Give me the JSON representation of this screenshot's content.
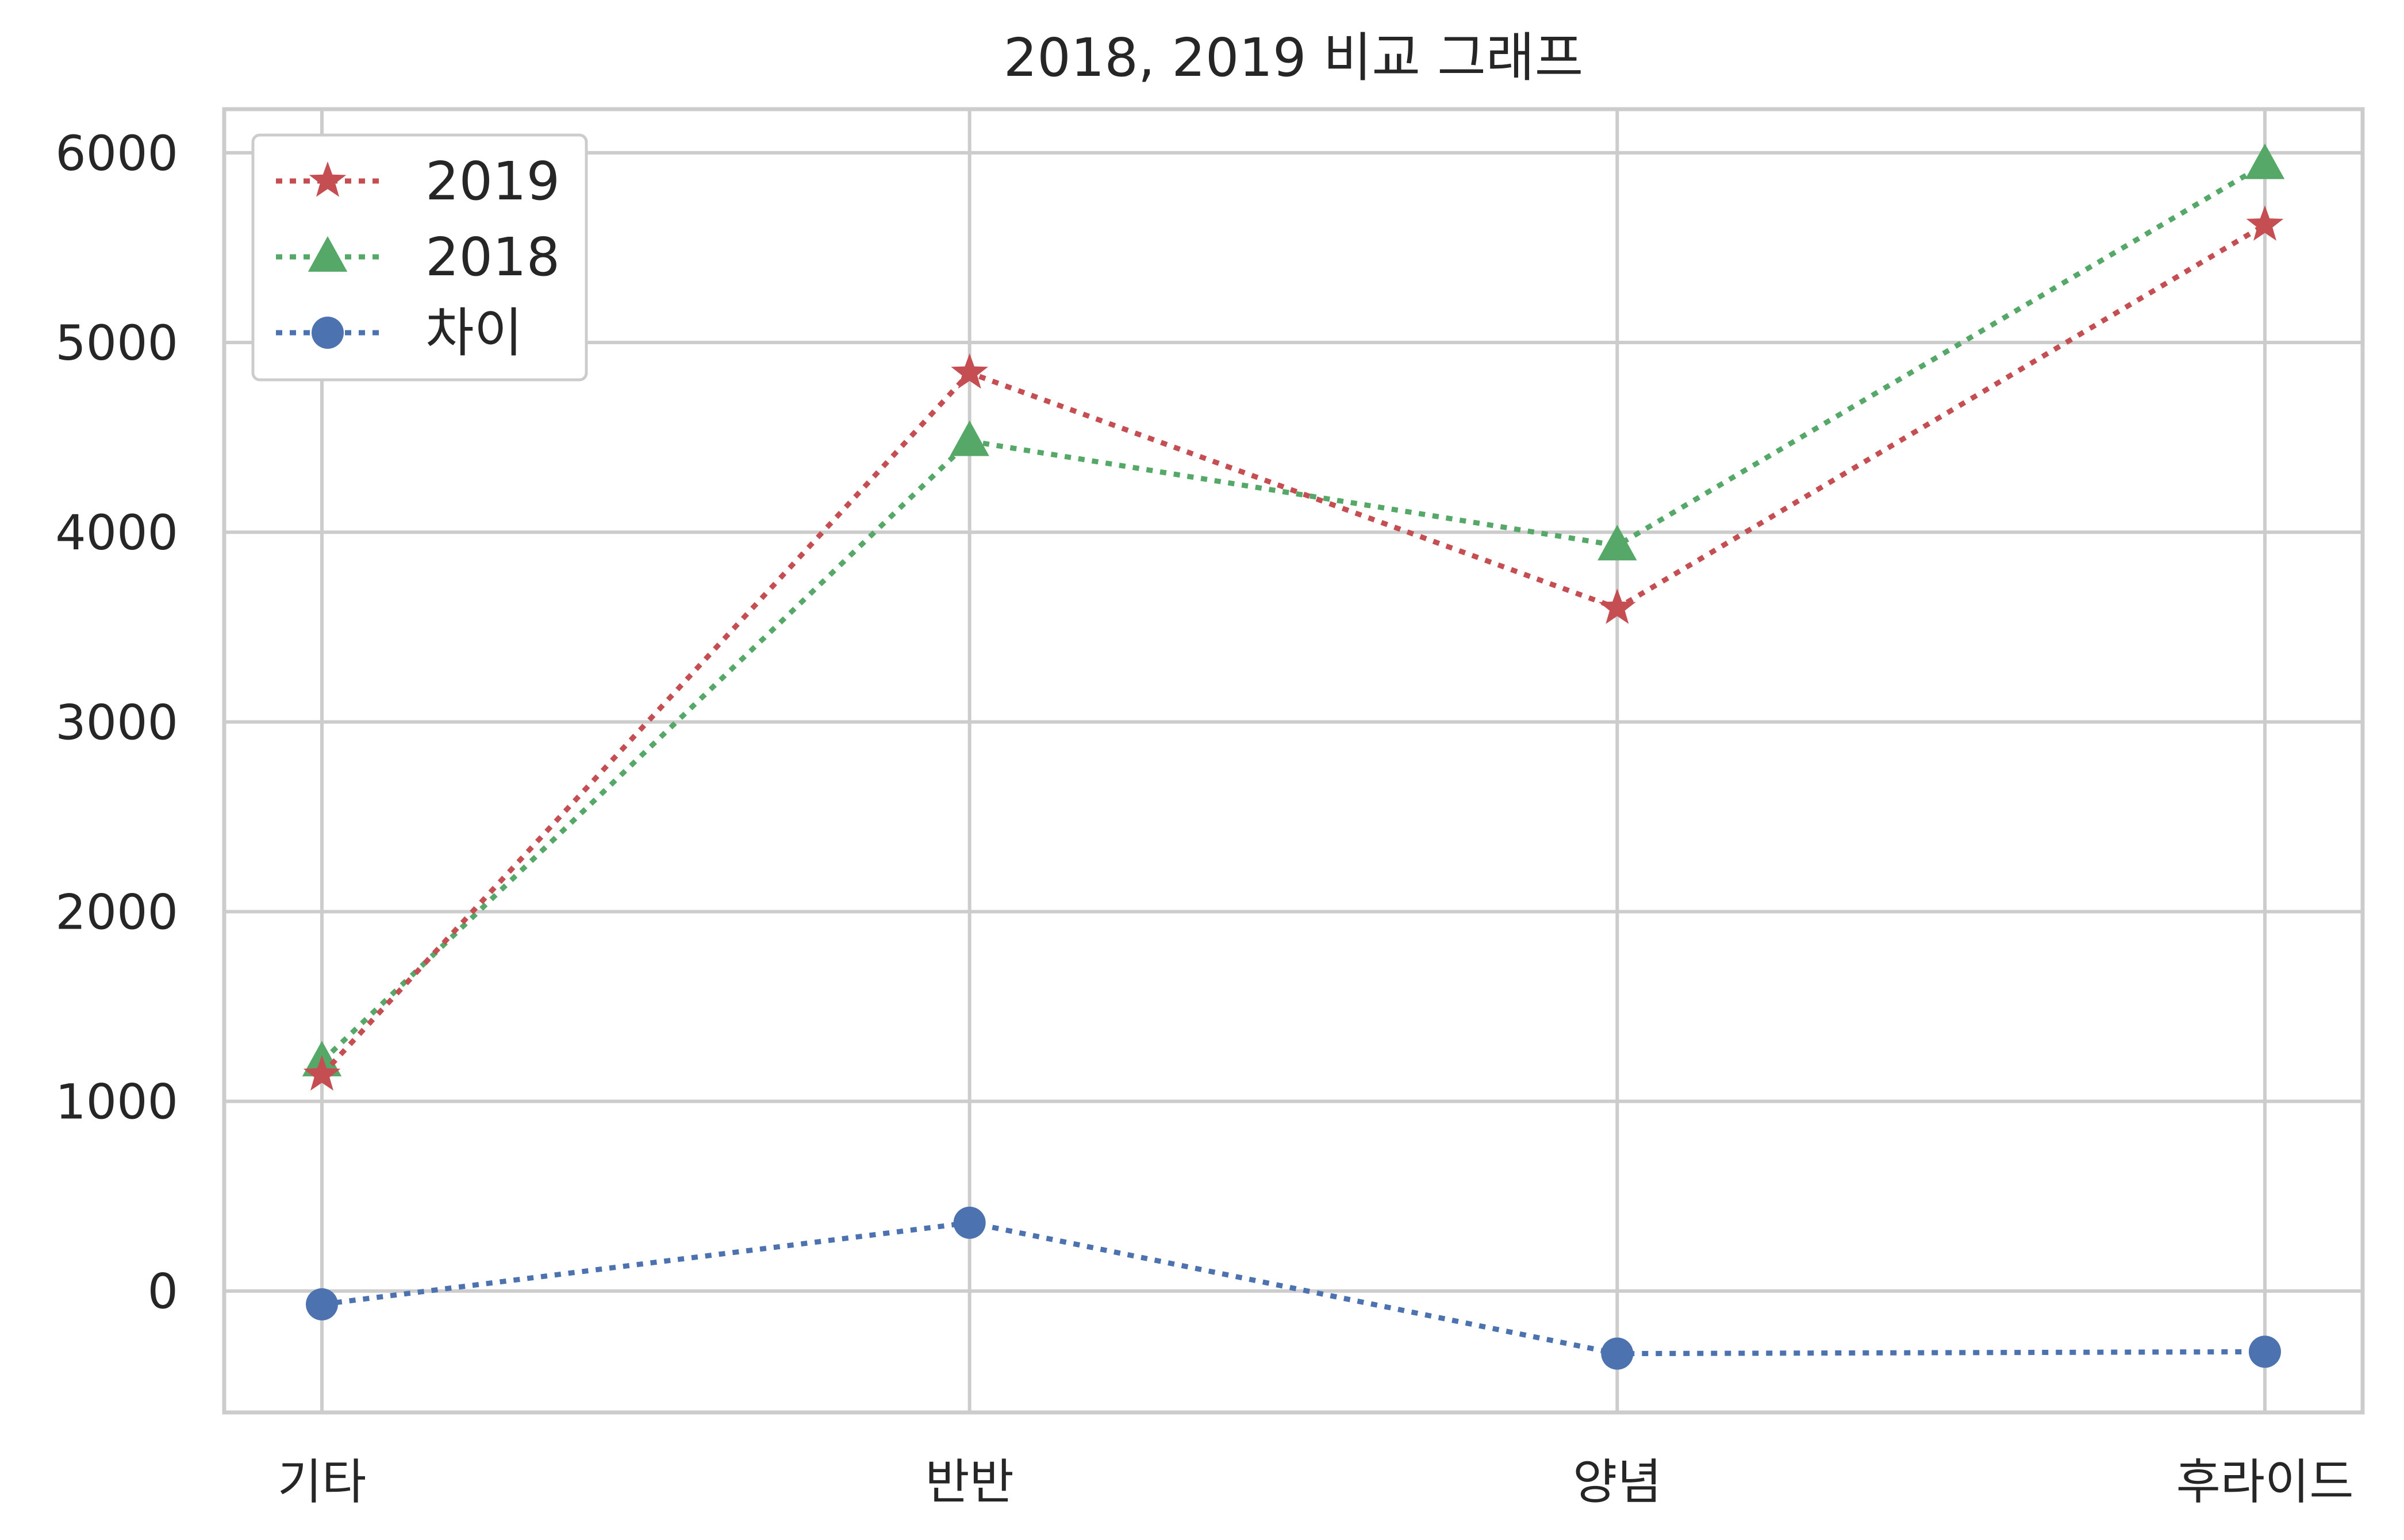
{
  "chart_data": {
    "type": "line",
    "title": "2018, 2019 비교 그래프",
    "xlabel": "",
    "ylabel": "",
    "categories": [
      "기타",
      "반반",
      "양념",
      "후라이드"
    ],
    "ylim": [
      -640,
      6230
    ],
    "yticks": [
      0,
      1000,
      2000,
      3000,
      4000,
      5000,
      6000
    ],
    "grid": true,
    "legend_position": "top-left",
    "series": [
      {
        "name": "2019",
        "values": [
          1140,
          4840,
          3600,
          5620
        ],
        "color": "#c44e52",
        "marker": "star",
        "linestyle": "dotted"
      },
      {
        "name": "2018",
        "values": [
          1210,
          4480,
          3930,
          5940
        ],
        "color": "#55a868",
        "marker": "triangle",
        "linestyle": "dotted"
      },
      {
        "name": "차이",
        "values": [
          -70,
          360,
          -330,
          -320
        ],
        "color": "#4c72b0",
        "marker": "circle",
        "linestyle": "dotted"
      }
    ]
  }
}
